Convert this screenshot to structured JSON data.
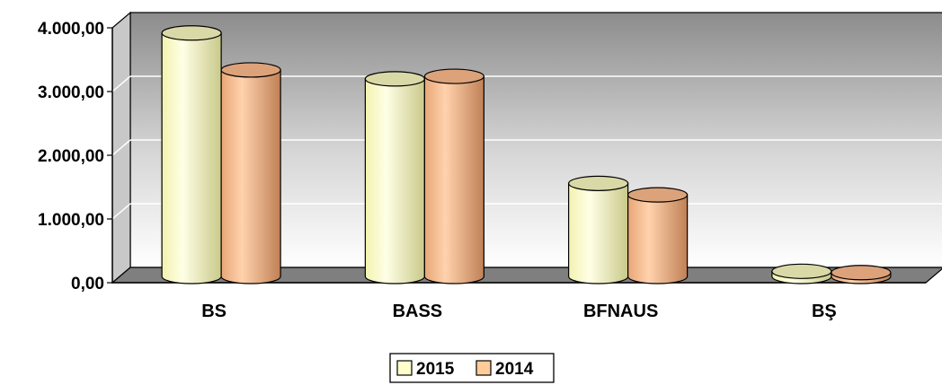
{
  "chart_data": {
    "type": "bar",
    "style": "3d-cylinder",
    "categories": [
      "BS",
      "BASS",
      "BFNAUS",
      "BŞ"
    ],
    "series": [
      {
        "name": "2015",
        "values": [
          3820,
          3100,
          1460,
          80
        ],
        "color": "#FFFFCC"
      },
      {
        "name": "2014",
        "values": [
          3240,
          3140,
          1280,
          60
        ],
        "color": "#FFCC99"
      }
    ],
    "y_ticks": [
      "0,00",
      "1.000,00",
      "2.000,00",
      "3.000,00",
      "4.000,00"
    ],
    "ylim": [
      0,
      4000
    ],
    "grid": true,
    "legend_position": "bottom",
    "title": "",
    "xlabel": "",
    "ylabel": ""
  }
}
